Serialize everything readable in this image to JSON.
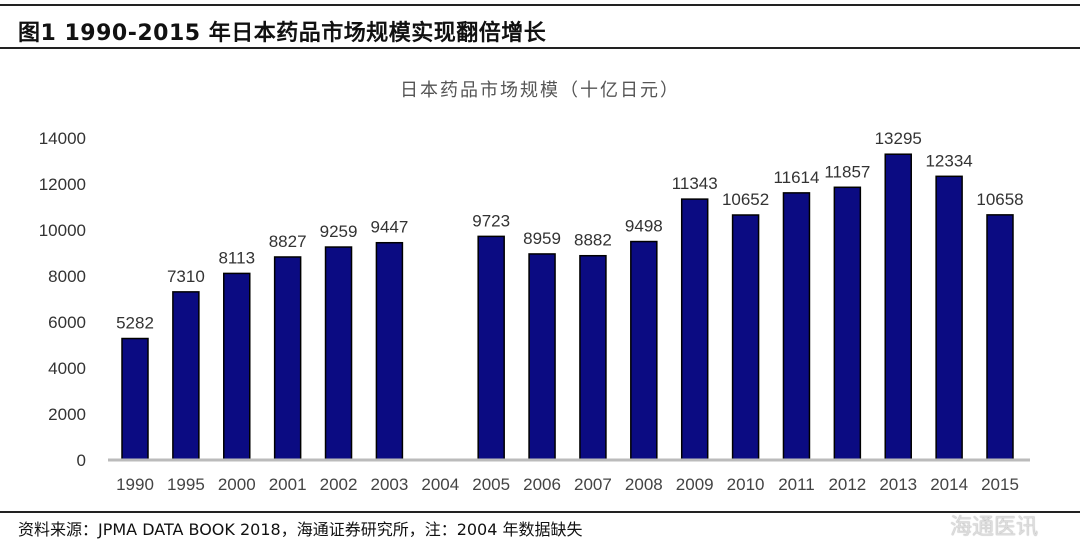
{
  "header": {
    "figure_title": "图1   1990-2015 年日本药品市场规模实现翻倍增长"
  },
  "footer": {
    "source": "资料来源：JPMA DATA BOOK 2018，海通证券研究所，注：2004 年数据缺失",
    "watermark": "海通医讯"
  },
  "chart_data": {
    "type": "bar",
    "title": "日本药品市场规模（十亿日元）",
    "categories": [
      "1990",
      "1995",
      "2000",
      "2001",
      "2002",
      "2003",
      "2004",
      "2005",
      "2006",
      "2007",
      "2008",
      "2009",
      "2010",
      "2011",
      "2012",
      "2013",
      "2014",
      "2015"
    ],
    "values": [
      5282,
      7310,
      8113,
      8827,
      9259,
      9447,
      null,
      9723,
      8959,
      8882,
      9498,
      11343,
      10652,
      11614,
      11857,
      13295,
      12334,
      10658
    ],
    "data_labels": [
      "5282",
      "7310",
      "8113",
      "8827",
      "9259",
      "9447",
      "",
      "9723",
      "8959",
      "8882",
      "9498",
      "11343",
      "10652",
      "11614",
      "11857",
      "13295",
      "12334",
      "10658"
    ],
    "ylim": [
      0,
      14000
    ],
    "yticks": [
      "0",
      "2000",
      "4000",
      "6000",
      "8000",
      "10000",
      "12000",
      "14000"
    ],
    "xlabel": "",
    "ylabel": "",
    "grid": false,
    "bar_color": "#0b0b82"
  }
}
